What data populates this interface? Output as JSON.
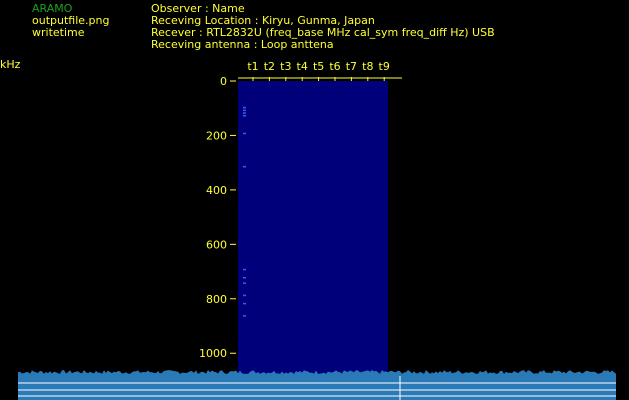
{
  "header": {
    "app_name": "ARAMO",
    "filename": "outputfile.png",
    "timestamp_label": "writetime",
    "observer_line": "Observer : Name",
    "location_line": "Receving Location :  Kiryu, Gunma, Japan",
    "receiver_line": "Recever : RTL2832U (freq_base MHz cal_sym freq_diff Hz) USB",
    "antenna_line": "Receving antenna : Loop anttena"
  },
  "spectrogram": {
    "unit_label": "kHz",
    "time_ticks": [
      "t1",
      "t2",
      "t3",
      "t4",
      "t5",
      "t6",
      "t7",
      "t8",
      "t9"
    ],
    "freq_ticks": [
      0,
      200,
      400,
      600,
      800,
      1000
    ],
    "freq_range": [
      0,
      1080
    ],
    "colors": {
      "background": "#000000",
      "label_text": "#ffff33",
      "app_name": "#1aa31a",
      "panel_fill": "#00007a",
      "bright_mark": "#3a57ff",
      "spectrum_fill": "#2b7ab8",
      "spectrum_line": "#ffffff"
    }
  }
}
